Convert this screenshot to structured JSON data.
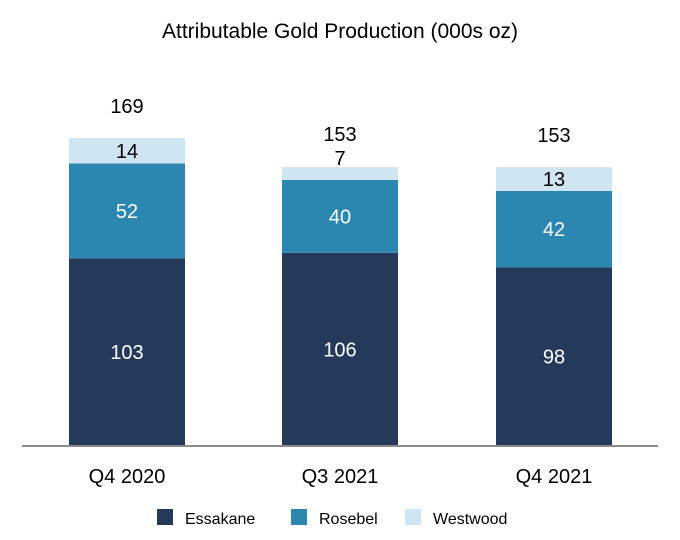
{
  "chart_data": {
    "type": "bar",
    "stacked": true,
    "title": "Attributable Gold Production (000s oz)",
    "categories": [
      "Q4 2020",
      "Q3 2021",
      "Q4 2021"
    ],
    "series": [
      {
        "name": "Essakane",
        "values": [
          103,
          106,
          98
        ],
        "color": "#253a5a",
        "label_color": "#ffffff"
      },
      {
        "name": "Rosebel",
        "values": [
          52,
          40,
          42
        ],
        "color": "#2b86b0",
        "label_color": "#ffffff"
      },
      {
        "name": "Westwood",
        "values": [
          14,
          7,
          13
        ],
        "color": "#cfe5f1",
        "label_color": "#000000"
      }
    ],
    "totals": [
      169,
      153,
      153
    ],
    "xlabel": "",
    "ylabel": "",
    "ylim": [
      0,
      169
    ],
    "grid": false,
    "legend_position": "bottom"
  }
}
